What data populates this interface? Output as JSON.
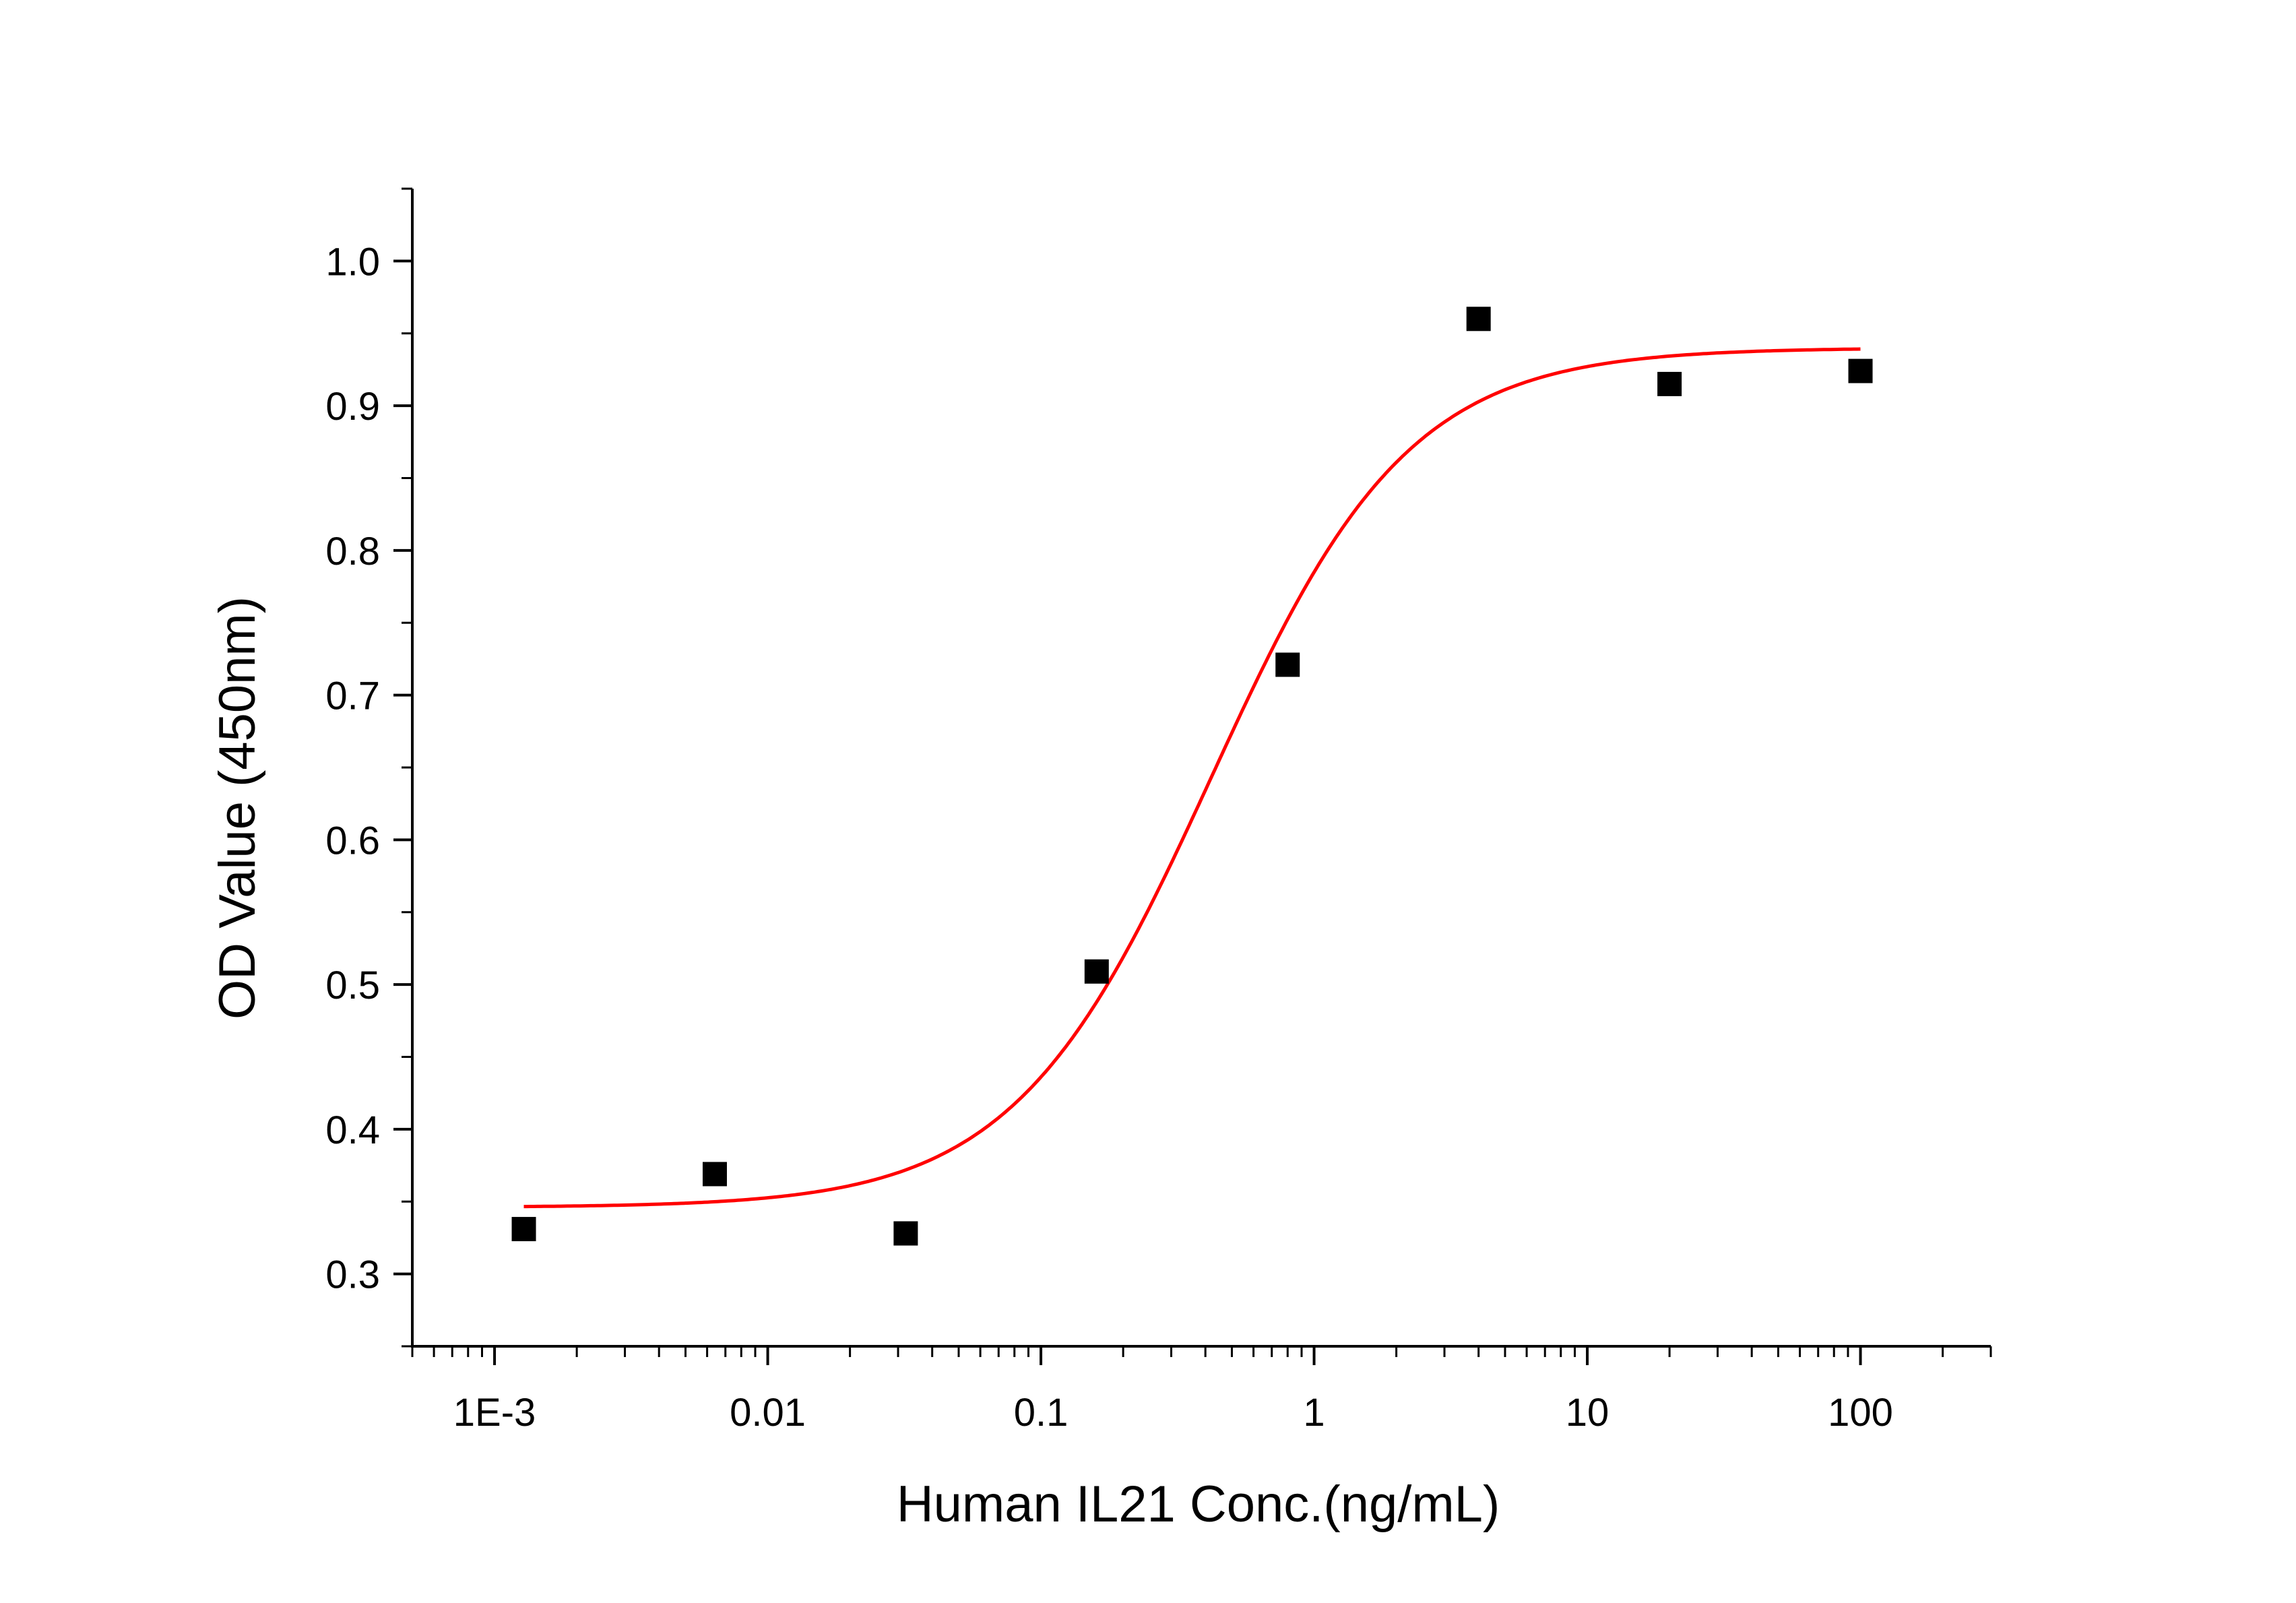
{
  "chart_data": {
    "type": "scatter",
    "xscale": "log",
    "xlabel": "Human IL21 Conc.(ng/mL)",
    "ylabel": "OD Value (450nm)",
    "xlim": [
      0.0005,
      300
    ],
    "ylim": [
      0.25,
      1.05
    ],
    "x_ticks": [
      {
        "value": 0.001,
        "label": "1E-3"
      },
      {
        "value": 0.01,
        "label": "0.01"
      },
      {
        "value": 0.1,
        "label": "0.1"
      },
      {
        "value": 1,
        "label": "1"
      },
      {
        "value": 10,
        "label": "10"
      },
      {
        "value": 100,
        "label": "100"
      }
    ],
    "y_ticks": [
      {
        "value": 0.3,
        "label": "0.3"
      },
      {
        "value": 0.4,
        "label": "0.4"
      },
      {
        "value": 0.5,
        "label": "0.5"
      },
      {
        "value": 0.6,
        "label": "0.6"
      },
      {
        "value": 0.7,
        "label": "0.7"
      },
      {
        "value": 0.8,
        "label": "0.8"
      },
      {
        "value": 0.9,
        "label": "0.9"
      },
      {
        "value": 1.0,
        "label": "1.0"
      }
    ],
    "series": [
      {
        "name": "data",
        "marker": "square",
        "color": "#000000",
        "x": [
          0.00128,
          0.0064,
          0.032,
          0.16,
          0.8,
          4,
          20,
          100
        ],
        "y": [
          0.331,
          0.369,
          0.328,
          0.509,
          0.721,
          0.96,
          0.915,
          0.924
        ]
      },
      {
        "name": "fit",
        "type": "line",
        "color": "#ff0000",
        "model": "4PL",
        "bottom": 0.346,
        "top": 0.94,
        "ec50": 0.42,
        "hill": 1.2,
        "x_range": [
          0.00128,
          100
        ]
      }
    ],
    "grid": false,
    "legend": false
  }
}
